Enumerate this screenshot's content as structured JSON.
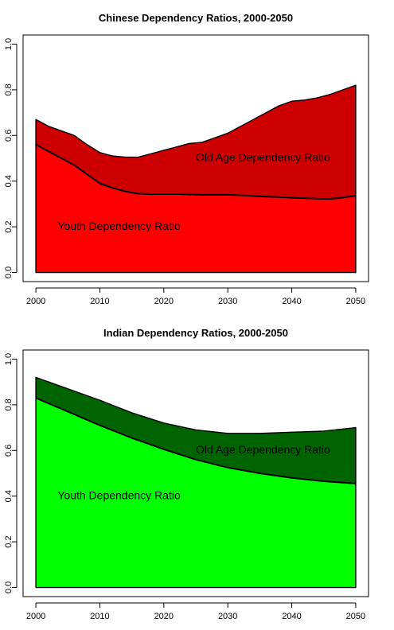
{
  "chart_data": [
    {
      "type": "area",
      "title": "Chinese Dependency Ratios, 2000-2050",
      "xlabel": "",
      "ylabel": "",
      "xlim": [
        2000,
        2050
      ],
      "ylim": [
        0,
        1.0
      ],
      "x_ticks": [
        "2000",
        "2010",
        "2020",
        "2030",
        "2040",
        "2050"
      ],
      "y_ticks": [
        "0.0",
        "0.2",
        "0.4",
        "0.6",
        "0.8",
        "1.0"
      ],
      "stacked": true,
      "x": [
        2000,
        2002,
        2004,
        2006,
        2008,
        2010,
        2012,
        2014,
        2016,
        2018,
        2020,
        2022,
        2024,
        2026,
        2028,
        2030,
        2032,
        2034,
        2036,
        2038,
        2040,
        2042,
        2044,
        2046,
        2048,
        2050
      ],
      "series": [
        {
          "name": "Youth Dependency Ratio",
          "color": "#ff0000",
          "values": [
            0.56,
            0.53,
            0.5,
            0.47,
            0.43,
            0.39,
            0.37,
            0.355,
            0.345,
            0.343,
            0.343,
            0.343,
            0.342,
            0.34,
            0.34,
            0.34,
            0.338,
            0.335,
            0.332,
            0.33,
            0.327,
            0.325,
            0.323,
            0.322,
            0.328,
            0.336
          ]
        },
        {
          "name": "Old Age Dependency Ratio",
          "color": "#cc0000",
          "total_values": [
            0.67,
            0.64,
            0.62,
            0.6,
            0.56,
            0.525,
            0.51,
            0.505,
            0.505,
            0.52,
            0.535,
            0.55,
            0.565,
            0.57,
            0.59,
            0.61,
            0.64,
            0.67,
            0.7,
            0.73,
            0.75,
            0.755,
            0.765,
            0.78,
            0.8,
            0.82
          ]
        }
      ],
      "annotations": [
        {
          "text": "Old Age Dependency Ratio",
          "x": 2035.5,
          "y": 0.5
        },
        {
          "text": "Youth Dependency Ratio",
          "x": 2013,
          "y": 0.2
        }
      ]
    },
    {
      "type": "area",
      "title": "Indian Dependency Ratios, 2000-2050",
      "xlabel": "",
      "ylabel": "",
      "xlim": [
        2000,
        2050
      ],
      "ylim": [
        0,
        1.0
      ],
      "x_ticks": [
        "2000",
        "2010",
        "2020",
        "2030",
        "2040",
        "2050"
      ],
      "y_ticks": [
        "0.0",
        "0.2",
        "0.4",
        "0.6",
        "0.8",
        "1.0"
      ],
      "stacked": true,
      "x": [
        2000,
        2005,
        2010,
        2015,
        2020,
        2025,
        2030,
        2035,
        2040,
        2045,
        2050
      ],
      "series": [
        {
          "name": "Youth Dependency Ratio",
          "color": "#00ff00",
          "values": [
            0.83,
            0.77,
            0.71,
            0.655,
            0.605,
            0.56,
            0.525,
            0.5,
            0.48,
            0.465,
            0.455
          ]
        },
        {
          "name": "Old Age Dependency Ratio",
          "color": "#006400",
          "total_values": [
            0.92,
            0.87,
            0.82,
            0.765,
            0.72,
            0.69,
            0.675,
            0.675,
            0.68,
            0.685,
            0.7
          ]
        }
      ],
      "annotations": [
        {
          "text": "Old Age Dependency Ratio",
          "x": 2035.5,
          "y": 0.6
        },
        {
          "text": "Youth Dependency Ratio",
          "x": 2013,
          "y": 0.4
        }
      ]
    }
  ]
}
